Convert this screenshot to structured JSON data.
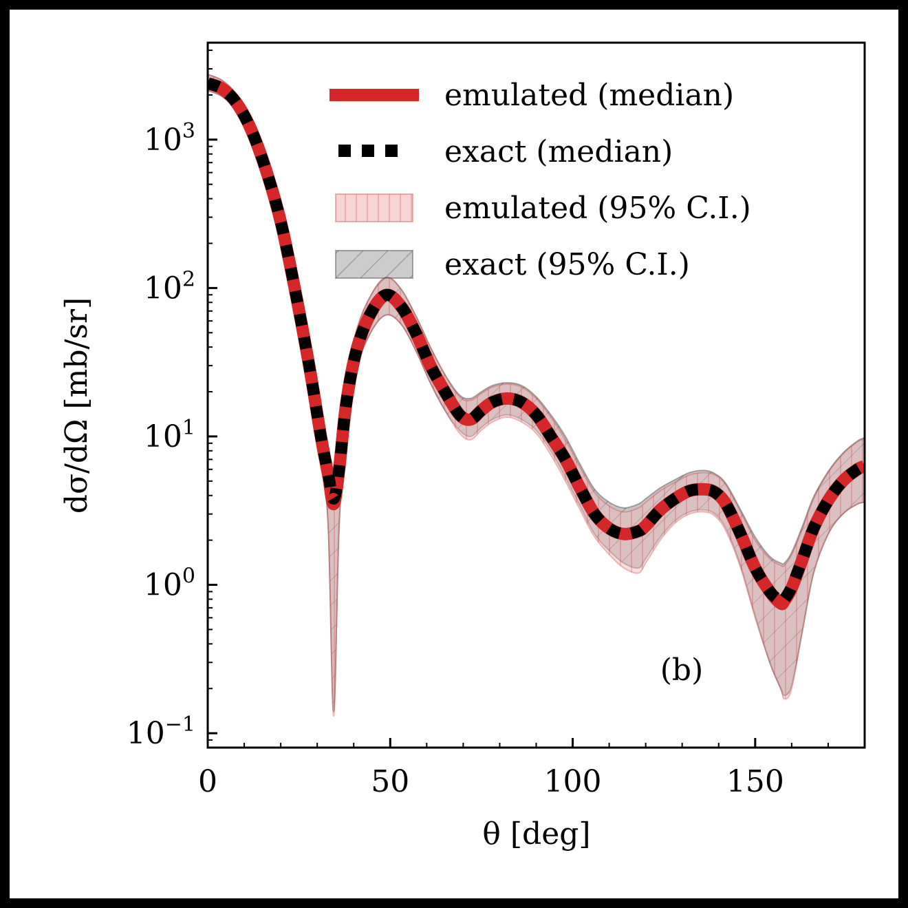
{
  "chart_data": {
    "type": "line",
    "xlabel": "θ [deg]",
    "ylabel": "dσ/dΩ [mb/sr]",
    "panel_label": "(b)",
    "xlim": [
      0,
      180
    ],
    "ylim": [
      0.08,
      4500
    ],
    "yscale": "log",
    "x_ticks": [
      0,
      50,
      100,
      150
    ],
    "y_ticks": [
      {
        "value": 0.1,
        "base": "10",
        "exp": "−1"
      },
      {
        "value": 1,
        "base": "10",
        "exp": "0"
      },
      {
        "value": 10,
        "base": "10",
        "exp": "1"
      },
      {
        "value": 100,
        "base": "10",
        "exp": "2"
      },
      {
        "value": 1000,
        "base": "10",
        "exp": "3"
      }
    ],
    "legend": {
      "position": "top-right",
      "entries": [
        {
          "key": "emulated_median",
          "label": "emulated (median)"
        },
        {
          "key": "exact_median",
          "label": "exact (median)"
        },
        {
          "key": "emulated_ci",
          "label": "emulated (95% C.I.)"
        },
        {
          "key": "exact_ci",
          "label": "exact (95% C.I.)"
        }
      ]
    },
    "colors": {
      "emulated": "#d62728",
      "exact": "#000000",
      "emulated_band": "#f2b8bb",
      "exact_band": "#808080"
    },
    "series": [
      {
        "name": "emulated (median)",
        "x": [
          0,
          4,
          8,
          12,
          16,
          20,
          24,
          28,
          31,
          33,
          34.5,
          36,
          38,
          41,
          45,
          49,
          53,
          57,
          61,
          65,
          69,
          72,
          75,
          78,
          82,
          86,
          90,
          94,
          98,
          102,
          106,
          110,
          114,
          118,
          120,
          124,
          128,
          132,
          136,
          139,
          142,
          146,
          150,
          154,
          157,
          158,
          160,
          163,
          166,
          170,
          174,
          178,
          180
        ],
        "y": [
          2400,
          2200,
          1750,
          1150,
          620,
          280,
          95,
          28,
          10,
          5.5,
          3.5,
          6,
          17,
          40,
          70,
          90,
          75,
          50,
          30,
          20,
          14,
          13,
          15,
          17,
          18,
          17,
          14,
          10,
          7,
          4.5,
          3,
          2.4,
          2.2,
          2.3,
          2.5,
          3.2,
          3.8,
          4.3,
          4.4,
          4.2,
          3.5,
          2.2,
          1.3,
          0.9,
          0.75,
          0.78,
          0.95,
          1.5,
          2.4,
          3.7,
          5,
          6,
          6.3
        ]
      },
      {
        "name": "exact (median)",
        "x": [
          0,
          4,
          8,
          12,
          16,
          20,
          24,
          28,
          31,
          33,
          34.5,
          36,
          38,
          41,
          45,
          49,
          53,
          57,
          61,
          65,
          69,
          72,
          75,
          78,
          82,
          86,
          90,
          94,
          98,
          102,
          106,
          110,
          114,
          118,
          120,
          124,
          128,
          132,
          136,
          139,
          142,
          146,
          150,
          154,
          157,
          158,
          160,
          163,
          166,
          170,
          174,
          178,
          180
        ],
        "y": [
          2400,
          2200,
          1750,
          1150,
          620,
          280,
          95,
          28,
          10,
          5.6,
          3.8,
          6,
          17,
          40,
          70,
          90,
          75,
          50,
          30,
          20,
          14,
          13,
          15,
          17,
          18,
          17,
          14,
          10,
          7,
          4.5,
          3,
          2.4,
          2.2,
          2.3,
          2.5,
          3.2,
          3.8,
          4.3,
          4.4,
          4.2,
          3.5,
          2.2,
          1.3,
          0.9,
          0.78,
          0.8,
          0.97,
          1.5,
          2.4,
          3.7,
          5,
          6,
          6.3
        ]
      },
      {
        "name": "emulated (95% C.I.)",
        "x": [
          0,
          4,
          8,
          12,
          16,
          20,
          24,
          28,
          31,
          33,
          34.5,
          36,
          38,
          41,
          45,
          49,
          53,
          57,
          61,
          65,
          69,
          72,
          75,
          78,
          82,
          86,
          90,
          94,
          98,
          102,
          106,
          110,
          114,
          118,
          120,
          124,
          128,
          132,
          136,
          139,
          142,
          146,
          150,
          154,
          157,
          158,
          160,
          163,
          166,
          170,
          174,
          178,
          180
        ],
        "lower": [
          2150,
          1950,
          1550,
          1000,
          540,
          240,
          80,
          23,
          7.5,
          2.5,
          0.13,
          2.5,
          12,
          30,
          52,
          66,
          57,
          38,
          23,
          15,
          10.5,
          9.5,
          11,
          12.5,
          13.5,
          12.5,
          10.5,
          7.5,
          5,
          3.2,
          2.1,
          1.6,
          1.3,
          1.2,
          1.4,
          2,
          2.6,
          3,
          3.1,
          2.9,
          2.3,
          1.3,
          0.6,
          0.3,
          0.2,
          0.17,
          0.2,
          0.5,
          1.2,
          2.2,
          3,
          3.5,
          3.6
        ],
        "upper": [
          2750,
          2500,
          2000,
          1320,
          720,
          330,
          112,
          34,
          13,
          8.5,
          5.5,
          9,
          23,
          54,
          92,
          118,
          98,
          65,
          40,
          26,
          18.5,
          17.5,
          19.5,
          21.5,
          22.5,
          21.5,
          18,
          13.5,
          9.5,
          6.2,
          4.2,
          3.4,
          3.1,
          3.3,
          3.6,
          4.3,
          4.9,
          5.5,
          5.7,
          5.5,
          4.7,
          3.1,
          2,
          1.5,
          1.35,
          1.35,
          1.6,
          2.4,
          3.8,
          5.7,
          7.6,
          9.2,
          9.7
        ]
      },
      {
        "name": "exact (95% C.I.)",
        "x": [
          0,
          4,
          8,
          12,
          16,
          20,
          24,
          28,
          31,
          33,
          34.5,
          36,
          38,
          41,
          45,
          49,
          53,
          57,
          61,
          65,
          69,
          72,
          75,
          78,
          82,
          86,
          90,
          94,
          98,
          102,
          106,
          110,
          114,
          118,
          120,
          124,
          128,
          132,
          136,
          139,
          142,
          146,
          150,
          154,
          157,
          158,
          160,
          163,
          166,
          170,
          174,
          178,
          180
        ],
        "lower": [
          2150,
          1950,
          1550,
          1000,
          540,
          240,
          80,
          23,
          7.5,
          2.5,
          0.14,
          2.5,
          12,
          30,
          52,
          66,
          57,
          38,
          23,
          15,
          11,
          10,
          11.5,
          13,
          14,
          13,
          11,
          8,
          5.3,
          3.4,
          2.2,
          1.7,
          1.4,
          1.3,
          1.5,
          2.1,
          2.7,
          3.1,
          3.2,
          3,
          2.4,
          1.35,
          0.62,
          0.3,
          0.2,
          0.18,
          0.21,
          0.5,
          1.2,
          2.2,
          3,
          3.5,
          3.6
        ],
        "upper": [
          2750,
          2500,
          2000,
          1320,
          720,
          330,
          112,
          34,
          13,
          8.5,
          5.5,
          9,
          23,
          54,
          92,
          118,
          98,
          65,
          40,
          26,
          19,
          18,
          20,
          22,
          23,
          22,
          18.5,
          14,
          10,
          6.5,
          4.4,
          3.6,
          3.3,
          3.5,
          3.8,
          4.5,
          5.1,
          5.7,
          5.9,
          5.6,
          4.8,
          3.2,
          2.1,
          1.55,
          1.4,
          1.4,
          1.65,
          2.5,
          3.9,
          5.8,
          7.7,
          9.3,
          9.8
        ]
      }
    ]
  }
}
